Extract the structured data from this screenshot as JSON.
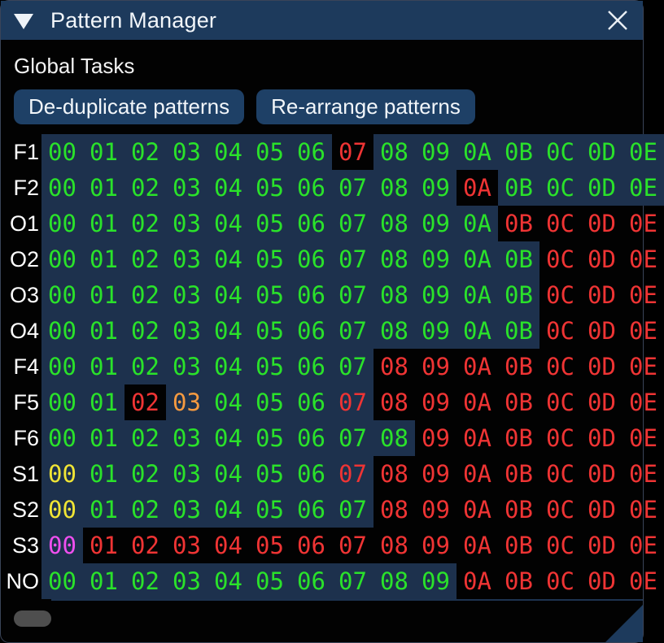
{
  "window": {
    "title": "Pattern Manager"
  },
  "icons": {
    "collapse": "collapse-triangle",
    "close": "close-x"
  },
  "section": {
    "heading": "Global Tasks"
  },
  "buttons": [
    {
      "label": "De-duplicate patterns"
    },
    {
      "label": "Re-arrange patterns"
    }
  ],
  "grid": {
    "columns": [
      "00",
      "01",
      "02",
      "03",
      "04",
      "05",
      "06",
      "07",
      "08",
      "09",
      "0A",
      "0B",
      "0C",
      "0D",
      "0E"
    ],
    "rows": [
      {
        "label": "F1",
        "colors": "gggggggrggggggg",
        "bg": "hhhhhhhkhhhhhhh"
      },
      {
        "label": "F2",
        "colors": "ggggggggggrgggg",
        "bg": "hhhhhhhhhhkhhhh"
      },
      {
        "label": "O1",
        "colors": "gggggggggggrrrr",
        "bg": "hhhhhhhhhhhkkkk"
      },
      {
        "label": "O2",
        "colors": "ggggggggggggrrr",
        "bg": "hhhhhhhhhhhhkkk"
      },
      {
        "label": "O3",
        "colors": "ggggggggggggrrr",
        "bg": "hhhhhhhhhhhhkkk"
      },
      {
        "label": "O4",
        "colors": "ggggggggggggrrr",
        "bg": "hhhhhhhhhhhhkkk"
      },
      {
        "label": "F4",
        "colors": "ggggggggrrrrrrr",
        "bg": "hhhhhhhhkkkkkkk"
      },
      {
        "label": "F5",
        "colors": "ggrogggrrrrrrrr",
        "bg": "hhkhhhhhkkkkkkk"
      },
      {
        "label": "F6",
        "colors": "gggggggggrrrrrr",
        "bg": "hhhhhhhhhkkkkkk"
      },
      {
        "label": "S1",
        "colors": "yggggggrrrrrrrr",
        "bg": "hhhhhhhhkkkkkkk"
      },
      {
        "label": "S2",
        "colors": "ygggggggrrrrrrr",
        "bg": "hhhhhhhhkkkkkkk"
      },
      {
        "label": "S3",
        "colors": "mrrrrrrrrrrrrrr",
        "bg": "hkkkkkkkkkkkkkk"
      },
      {
        "label": "NO",
        "colors": "ggggggggggrrrrr",
        "bg": "hhhhhhhhhhkkkkk"
      }
    ],
    "palette": {
      "g": "#2ae22a",
      "r": "#ef3434",
      "o": "#f59a40",
      "y": "#f0e535",
      "m": "#ef4fef",
      "label": "#ffffff",
      "highlight_bg": "#1d314d",
      "cell_bg": "#000000"
    }
  },
  "colors": {
    "titlebar": "#1d3a5c",
    "button": "#1e4066",
    "window_bg": "#020202",
    "scroll_thumb": "#4e4e4e",
    "resize_grip": "#1d3a5c"
  }
}
